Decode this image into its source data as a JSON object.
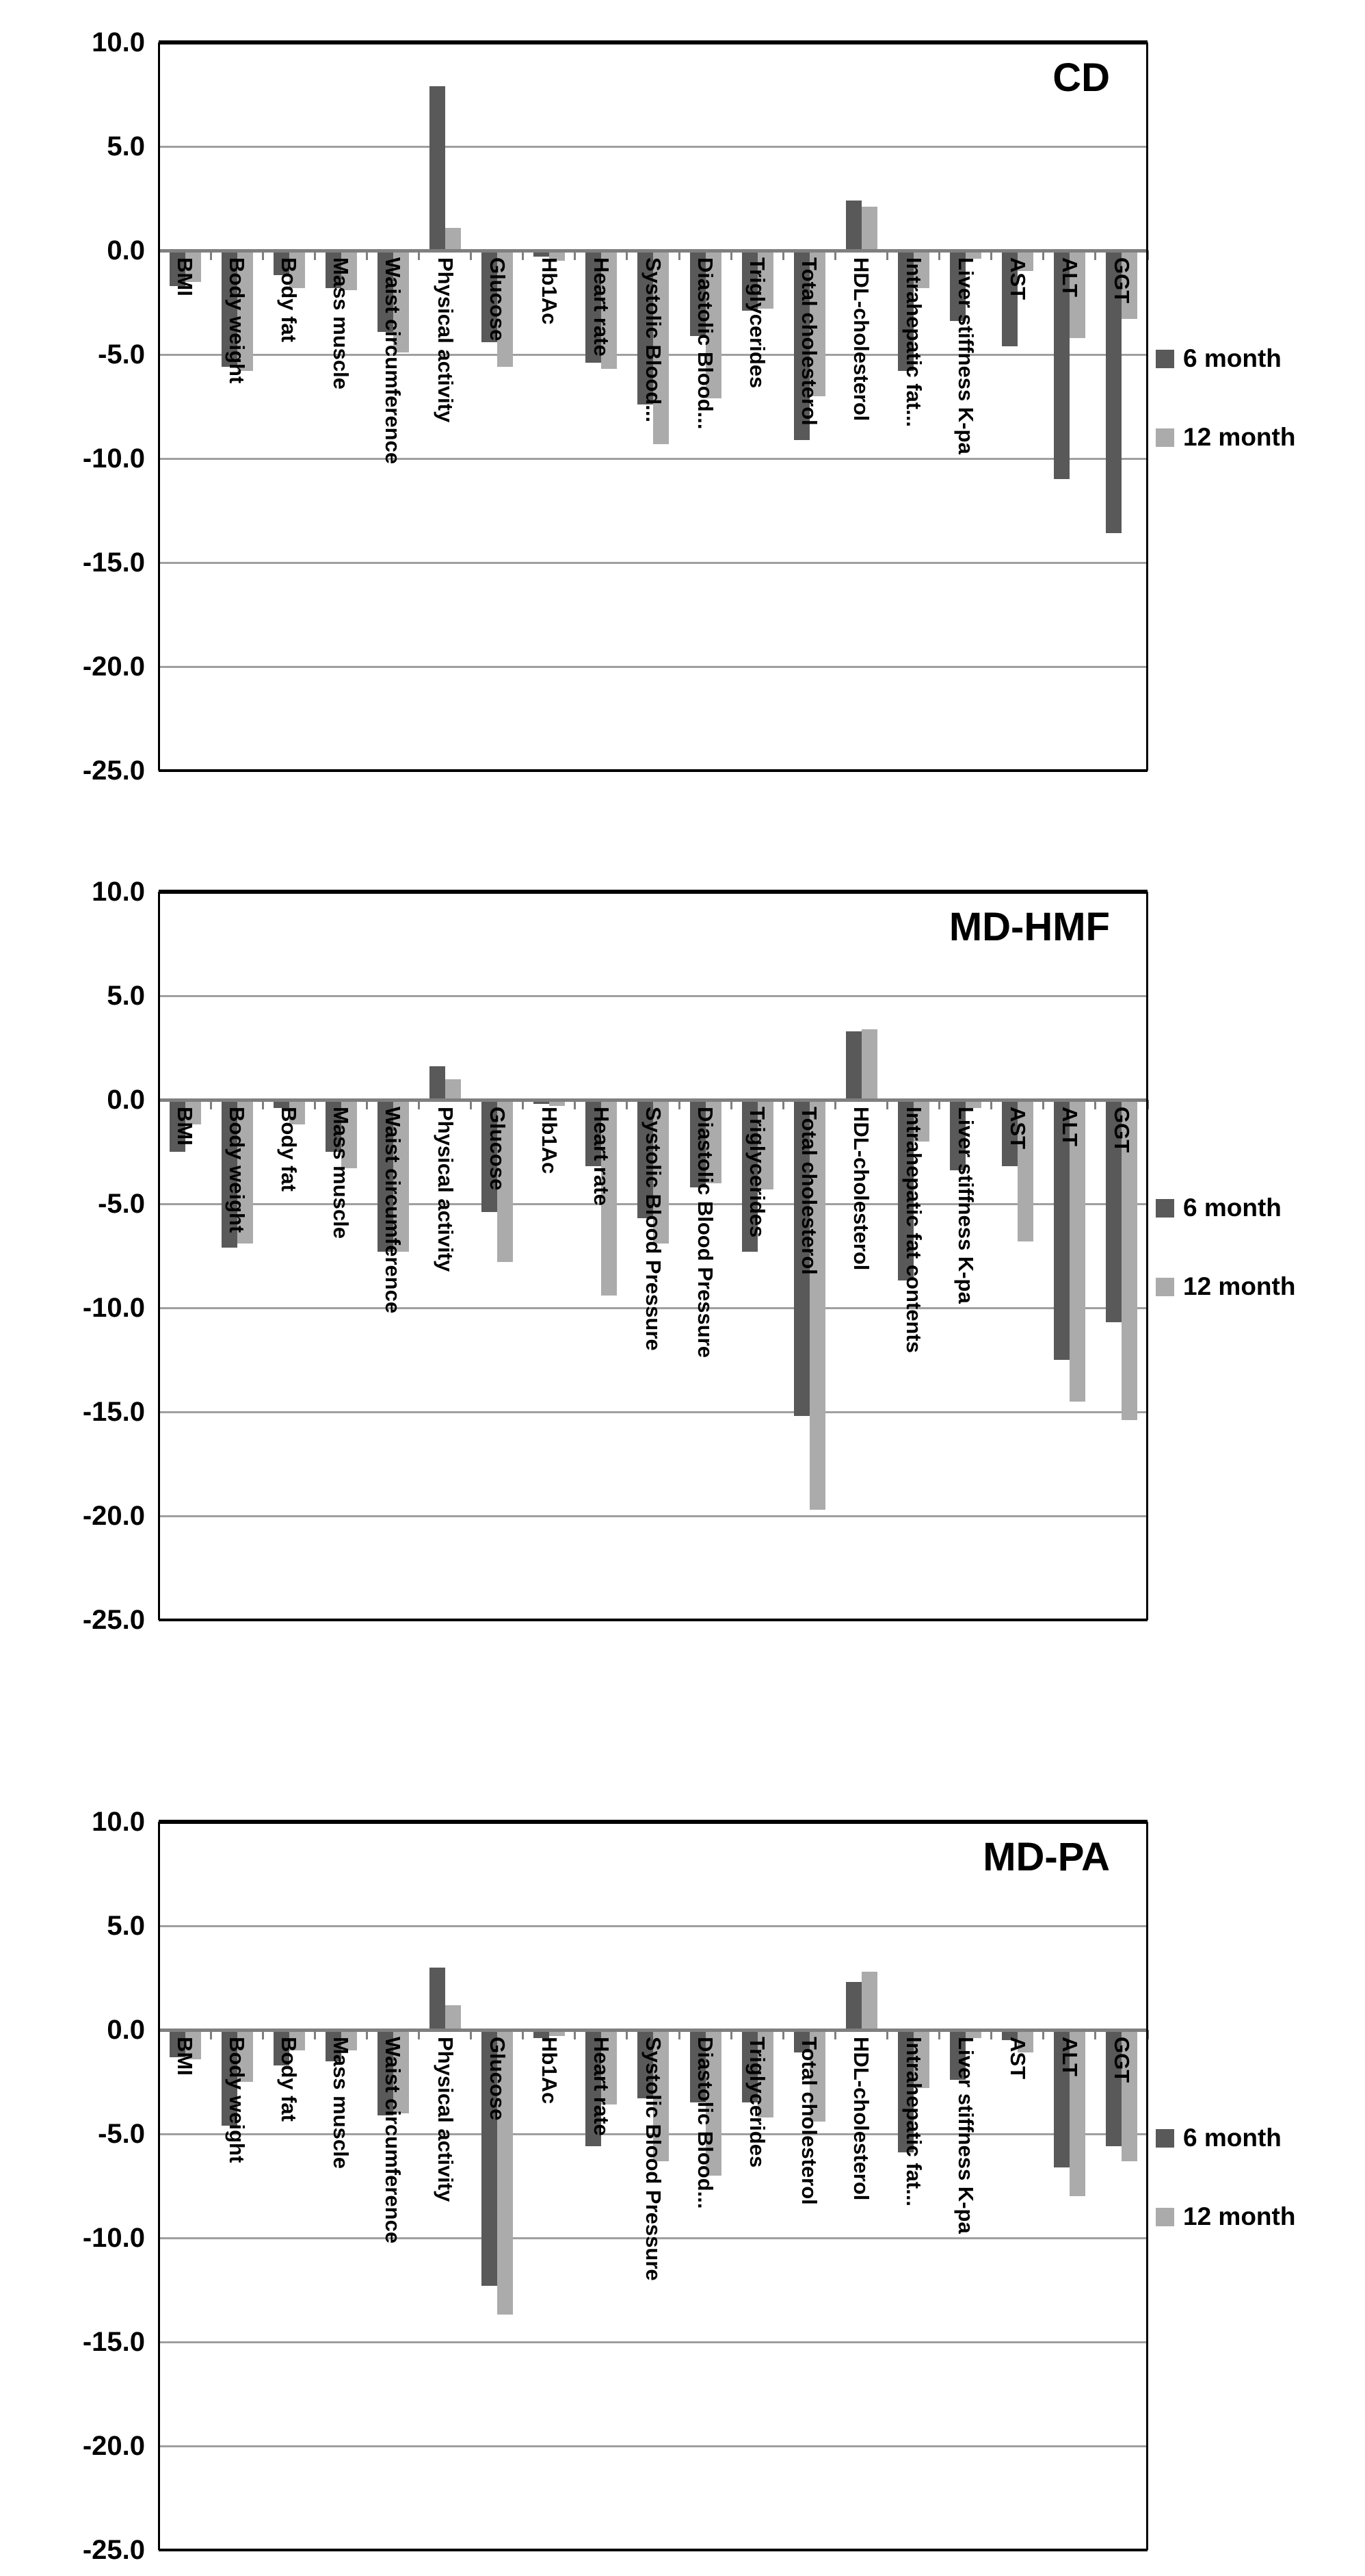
{
  "colors": {
    "series_6_month": "#595959",
    "series_12_month": "#ABABAB",
    "gridline": "#9f9f9f",
    "zero_line": "#7f7f7f",
    "plot_border": "#000000",
    "background": "#ffffff",
    "text": "#000000"
  },
  "y_ticks": [
    "10.0",
    "5.0",
    "0.0",
    "-5.0",
    "-10.0",
    "-15.0",
    "-20.0",
    "-25.0"
  ],
  "chart_data": [
    {
      "type": "bar",
      "title": "CD",
      "ylim": [
        -25,
        10
      ],
      "y_step": 5,
      "grid": true,
      "legend_position": "right",
      "categories": [
        "BMI",
        "Body weight",
        "Body fat",
        "Mass muscle",
        "Waist circumference",
        "Physical activity",
        "Glucose",
        "Hb1Ac",
        "Heart rate",
        "Systolic Blood...",
        "Diastolic Blood...",
        "Triglycerides",
        "Total cholesterol",
        "HDL-cholesterol",
        "Intrahepatic fat...",
        "Liver stiffness K-pa",
        "AST",
        "ALT",
        "GGT"
      ],
      "series": [
        {
          "name": "6 month",
          "values": [
            -1.7,
            -5.6,
            -1.2,
            -1.8,
            -3.9,
            7.9,
            -4.4,
            -0.3,
            -5.4,
            -7.4,
            -4.1,
            -2.9,
            -9.1,
            2.4,
            -5.8,
            -3.4,
            -4.6,
            -11.0,
            -13.6
          ]
        },
        {
          "name": "12 month",
          "values": [
            -1.5,
            -5.8,
            -1.8,
            -1.9,
            -4.9,
            1.1,
            -5.6,
            -0.5,
            -5.7,
            -9.3,
            -7.1,
            -2.8,
            -7.0,
            2.1,
            -1.8,
            -0.4,
            -1.0,
            -4.2,
            -3.3
          ]
        }
      ]
    },
    {
      "type": "bar",
      "title": "MD-HMF",
      "ylim": [
        -25,
        10
      ],
      "y_step": 5,
      "grid": true,
      "legend_position": "right",
      "categories": [
        "BMI",
        "Body weight",
        "Body fat",
        "Mass muscle",
        "Waist circumference",
        "Physical activity",
        "Glucose",
        "Hb1Ac",
        "Heart rate",
        "Systolic Blood Pressure",
        "Diastolic Blood Pressure",
        "Triglycerides",
        "Total cholesterol",
        "HDL-cholesterol",
        "Intrahepatic fat contents",
        "Liver stiffness K-pa",
        "AST",
        "ALT",
        "GGT"
      ],
      "series": [
        {
          "name": "6 month",
          "values": [
            -2.5,
            -7.1,
            -0.4,
            -2.5,
            -7.3,
            1.6,
            -5.4,
            -0.2,
            -3.2,
            -5.7,
            -4.2,
            -7.3,
            -15.2,
            3.3,
            -8.7,
            -3.4,
            -3.2,
            -12.5,
            -10.7
          ]
        },
        {
          "name": "12 month",
          "values": [
            -1.2,
            -6.9,
            -1.2,
            -3.3,
            -7.3,
            1.0,
            -7.8,
            -0.3,
            -9.4,
            -6.9,
            -4.0,
            -4.3,
            -19.7,
            3.4,
            -2.0,
            -0.4,
            -6.8,
            -14.5,
            -15.4
          ]
        }
      ]
    },
    {
      "type": "bar",
      "title": "MD-PA",
      "ylim": [
        -25,
        10
      ],
      "y_step": 5,
      "grid": true,
      "legend_position": "right",
      "categories": [
        "BMI",
        "Body weight",
        "Body fat",
        "Mass muscle",
        "Waist circumference",
        "Physical activity",
        "Glucose",
        "Hb1Ac",
        "Heart rate",
        "Systolic Blood Pressure",
        "Diastolic Blood...",
        "Triglycerides",
        "Total cholesterol",
        "HDL-cholesterol",
        "Intrahepatic fat...",
        "Liver stiffness K-pa",
        "AST",
        "ALT",
        "GGT"
      ],
      "series": [
        {
          "name": "6 month",
          "values": [
            -1.3,
            -4.6,
            -1.7,
            -1.5,
            -4.1,
            3.0,
            -12.3,
            -0.4,
            -5.6,
            -3.3,
            -3.5,
            -3.5,
            -1.1,
            2.3,
            -5.9,
            -2.4,
            -0.5,
            -6.6,
            -5.6
          ]
        },
        {
          "name": "12 month",
          "values": [
            -1.4,
            -2.5,
            -1.0,
            -1.0,
            -4.0,
            1.2,
            -13.7,
            -0.3,
            -3.6,
            -6.3,
            -7.0,
            -4.2,
            -4.4,
            2.8,
            -2.8,
            -0.4,
            -1.1,
            -8.0,
            -6.3
          ]
        }
      ]
    }
  ]
}
